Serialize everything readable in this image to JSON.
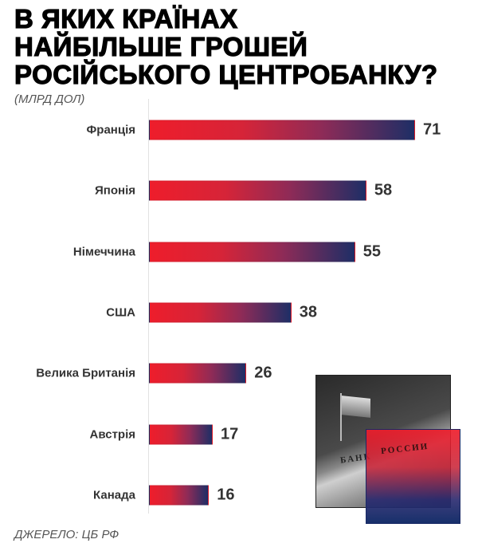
{
  "title_lines": [
    "В ЯКИХ КРАЇНАХ",
    "НАЙБІЛЬШЕ ГРОШЕЙ",
    "РОСІЙСЬКОГО ЦЕНТРОБАНКУ?"
  ],
  "source": "ДЖЕРЕЛО: ЦБ РФ",
  "photo": {
    "sign_left": "БАНК",
    "sign_right": "РОССИИ"
  },
  "colors": {
    "bar_start": "#ee1d2b",
    "bar_end": "#1e2e66"
  },
  "chart_data": {
    "type": "bar",
    "orientation": "horizontal",
    "title": "В ЯКИХ КРАЇНАХ НАЙБІЛЬШЕ ГРОШЕЙ РОСІЙСЬКОГО ЦЕНТРОБАНКУ?",
    "unit_label": "(МЛРД ДОЛ)",
    "categories": [
      "Франція",
      "Японія",
      "Німеччина",
      "США",
      "Велика Британія",
      "Австрія",
      "Канада"
    ],
    "values": [
      71,
      58,
      55,
      38,
      26,
      17,
      16
    ],
    "xlim": [
      0,
      71
    ],
    "grid": false,
    "data_labels": true
  }
}
